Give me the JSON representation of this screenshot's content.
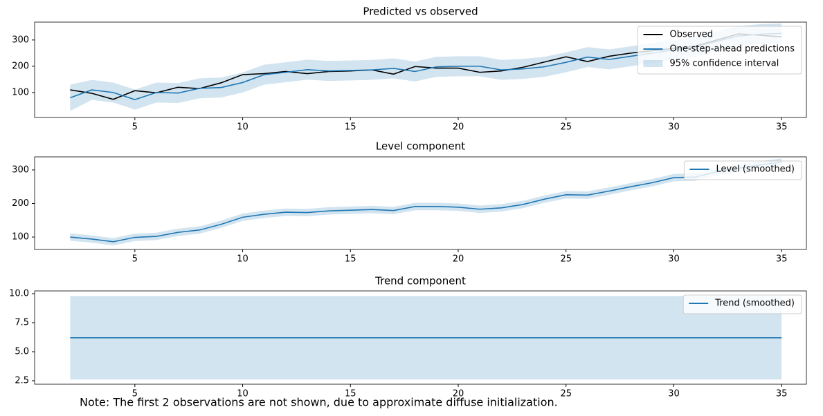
{
  "chart_data": [
    {
      "type": "line",
      "title": "Predicted vs observed",
      "x": [
        2,
        3,
        4,
        5,
        6,
        7,
        8,
        9,
        10,
        11,
        12,
        13,
        14,
        15,
        16,
        17,
        18,
        19,
        20,
        21,
        22,
        23,
        24,
        25,
        26,
        27,
        28,
        29,
        30,
        31,
        32,
        33,
        34,
        35
      ],
      "series": [
        {
          "name": "Observed",
          "color": "#000000",
          "values": [
            110,
            97,
            74,
            107,
            99,
            120,
            115,
            137,
            168,
            172,
            180,
            172,
            180,
            182,
            186,
            170,
            199,
            193,
            193,
            177,
            182,
            196,
            216,
            236,
            218,
            238,
            250,
            259,
            268,
            277,
            300,
            323,
            318,
            312
          ]
        },
        {
          "name": "One-step-ahead predictions",
          "color": "#1f77b4",
          "values": [
            80,
            110,
            100,
            73,
            100,
            98,
            116,
            119,
            138,
            168,
            177,
            187,
            182,
            184,
            186,
            192,
            180,
            198,
            200,
            200,
            186,
            190,
            198,
            215,
            235,
            226,
            238,
            250,
            262,
            274,
            295,
            315,
            322,
            325
          ]
        }
      ],
      "band": {
        "name": "95% confidence interval",
        "color": "#1f77b4",
        "lower": [
          30,
          72,
          62,
          35,
          62,
          60,
          78,
          81,
          100,
          130,
          139,
          149,
          144,
          146,
          148,
          154,
          142,
          160,
          162,
          162,
          148,
          152,
          160,
          177,
          197,
          188,
          200,
          212,
          224,
          236,
          257,
          277,
          284,
          287
        ],
        "upper": [
          130,
          148,
          138,
          111,
          138,
          136,
          154,
          157,
          176,
          206,
          215,
          225,
          220,
          222,
          224,
          230,
          218,
          236,
          238,
          238,
          224,
          228,
          236,
          253,
          273,
          264,
          276,
          288,
          300,
          312,
          333,
          353,
          360,
          363
        ]
      },
      "xlim": [
        0.35,
        36.15
      ],
      "xticks": [
        5,
        10,
        15,
        20,
        25,
        30,
        35
      ],
      "ylim": [
        5,
        368
      ],
      "yticks": [
        100,
        200,
        300
      ],
      "legend": "upper right"
    },
    {
      "type": "line",
      "title": "Level component",
      "x": [
        2,
        3,
        4,
        5,
        6,
        7,
        8,
        9,
        10,
        11,
        12,
        13,
        14,
        15,
        16,
        17,
        18,
        19,
        20,
        21,
        22,
        23,
        24,
        25,
        26,
        27,
        28,
        29,
        30,
        31,
        32,
        33,
        34,
        35
      ],
      "series": [
        {
          "name": "Level (smoothed)",
          "color": "#1f77b4",
          "values": [
            100,
            94,
            86,
            99,
            102,
            114,
            121,
            138,
            159,
            168,
            174,
            173,
            178,
            180,
            182,
            179,
            191,
            191,
            189,
            183,
            187,
            197,
            213,
            226,
            225,
            237,
            250,
            262,
            277,
            279,
            295,
            305,
            315,
            323
          ]
        }
      ],
      "band": {
        "color": "#1f77b4",
        "lower": [
          89,
          83,
          75,
          88,
          91,
          103,
          110,
          127,
          148,
          157,
          163,
          162,
          167,
          169,
          171,
          168,
          180,
          180,
          178,
          172,
          176,
          186,
          202,
          215,
          214,
          226,
          239,
          251,
          266,
          268,
          284,
          294,
          304,
          312
        ],
        "upper": [
          111,
          105,
          97,
          110,
          113,
          125,
          132,
          149,
          170,
          179,
          185,
          184,
          189,
          191,
          193,
          190,
          202,
          202,
          200,
          194,
          198,
          208,
          224,
          237,
          236,
          248,
          261,
          273,
          288,
          290,
          306,
          316,
          326,
          334
        ]
      },
      "xlim": [
        0.35,
        36.15
      ],
      "xticks": [
        5,
        10,
        15,
        20,
        25,
        30,
        35
      ],
      "ylim": [
        63,
        339
      ],
      "yticks": [
        100,
        200,
        300
      ],
      "legend": "upper right"
    },
    {
      "type": "line",
      "title": "Trend component",
      "x": [
        2,
        3,
        4,
        5,
        6,
        7,
        8,
        9,
        10,
        11,
        12,
        13,
        14,
        15,
        16,
        17,
        18,
        19,
        20,
        21,
        22,
        23,
        24,
        25,
        26,
        27,
        28,
        29,
        30,
        31,
        32,
        33,
        34,
        35
      ],
      "series": [
        {
          "name": "Trend (smoothed)",
          "color": "#1f77b4",
          "values": [
            6.2,
            6.2,
            6.2,
            6.2,
            6.2,
            6.2,
            6.2,
            6.2,
            6.2,
            6.2,
            6.2,
            6.2,
            6.2,
            6.2,
            6.2,
            6.2,
            6.2,
            6.2,
            6.2,
            6.2,
            6.2,
            6.2,
            6.2,
            6.2,
            6.2,
            6.2,
            6.2,
            6.2,
            6.2,
            6.2,
            6.2,
            6.2,
            6.2,
            6.2
          ]
        }
      ],
      "band": {
        "color": "#1f77b4",
        "lower": [
          2.6,
          2.6,
          2.6,
          2.6,
          2.6,
          2.6,
          2.6,
          2.6,
          2.6,
          2.6,
          2.6,
          2.6,
          2.6,
          2.6,
          2.6,
          2.6,
          2.6,
          2.6,
          2.6,
          2.6,
          2.6,
          2.6,
          2.6,
          2.6,
          2.6,
          2.6,
          2.6,
          2.6,
          2.6,
          2.6,
          2.6,
          2.6,
          2.6,
          2.6
        ],
        "upper": [
          9.8,
          9.8,
          9.8,
          9.8,
          9.8,
          9.8,
          9.8,
          9.8,
          9.8,
          9.8,
          9.8,
          9.8,
          9.8,
          9.8,
          9.8,
          9.8,
          9.8,
          9.8,
          9.8,
          9.8,
          9.8,
          9.8,
          9.8,
          9.8,
          9.8,
          9.8,
          9.8,
          9.8,
          9.8,
          9.8,
          9.8,
          9.8,
          9.8,
          9.8
        ]
      },
      "xlim": [
        0.35,
        36.15
      ],
      "xticks": [
        5,
        10,
        15,
        20,
        25,
        30,
        35
      ],
      "ylim": [
        2.2,
        10.24
      ],
      "yticks": [
        {
          "value": 2.5,
          "label": "2.5"
        },
        {
          "value": 5,
          "label": "5.0"
        },
        {
          "value": 7.5,
          "label": "7.5"
        },
        {
          "value": 10,
          "label": "10.0"
        }
      ],
      "legend": "upper right"
    }
  ],
  "note": "Note: The first 2 observations are not shown, due to approximate diffuse initialization."
}
